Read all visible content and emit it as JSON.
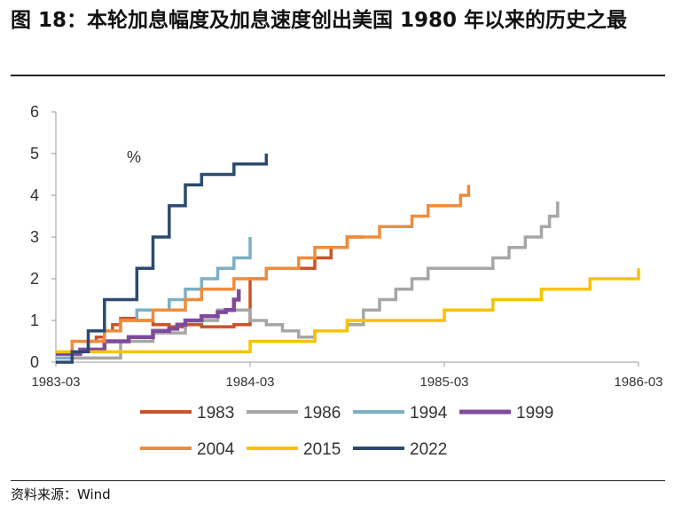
{
  "title": "图 18：本轮加息幅度及加息速度创出美国 1980 年以来的历史之最",
  "source": "资料来源：Wind",
  "chart_data": {
    "type": "line",
    "unit_label": "%",
    "x_ticks": [
      "1983-03",
      "1984-03",
      "1985-03",
      "1986-03"
    ],
    "y_ticks": [
      "0",
      "1",
      "2",
      "3",
      "4",
      "5",
      "6"
    ],
    "ylim": [
      0,
      6
    ],
    "xlim_months": [
      0,
      36
    ],
    "grid": false,
    "legend_position": "bottom",
    "series": [
      {
        "name": "1983",
        "color": "#c9532a",
        "x": [
          0,
          1.5,
          2,
          2.5,
          3,
          3.5,
          4,
          5,
          6,
          7,
          8,
          9,
          10,
          11,
          11.7,
          12,
          13,
          14,
          15,
          16,
          17,
          18,
          19
        ],
        "y": [
          0.2,
          0.3,
          0.5,
          0.6,
          0.75,
          0.9,
          1.05,
          1.0,
          0.9,
          0.85,
          0.9,
          0.85,
          0.85,
          0.9,
          0.9,
          2.0,
          2.25,
          2.25,
          2.25,
          2.5,
          2.75,
          3.0,
          3.0
        ]
      },
      {
        "name": "1986",
        "color": "#a6a6a6",
        "x": [
          0,
          2,
          4,
          6,
          8,
          10,
          12,
          13,
          14,
          15,
          16,
          17,
          18,
          19,
          20,
          21,
          22,
          23,
          24,
          25,
          26,
          27,
          28,
          29,
          30,
          30.5,
          31
        ],
        "y": [
          0.1,
          0.1,
          0.5,
          0.7,
          1.0,
          1.25,
          1.0,
          0.9,
          0.75,
          0.6,
          0.75,
          0.75,
          0.9,
          1.25,
          1.5,
          1.75,
          2.0,
          2.25,
          2.25,
          2.25,
          2.25,
          2.5,
          2.75,
          3.0,
          3.25,
          3.5,
          3.85
        ]
      },
      {
        "name": "1994",
        "color": "#7bafc4",
        "x": [
          0,
          1,
          2,
          3,
          4,
          5,
          6,
          7,
          8,
          9,
          10,
          11,
          12
        ],
        "y": [
          0.1,
          0.25,
          0.5,
          0.75,
          1.0,
          1.25,
          1.25,
          1.5,
          1.75,
          2.0,
          2.25,
          2.5,
          3.0
        ]
      },
      {
        "name": "1999",
        "color": "#7e4a9a",
        "x": [
          0,
          1.5,
          3,
          4.5,
          6,
          7,
          7.5,
          8,
          9,
          10,
          10.5,
          11,
          11.3
        ],
        "y": [
          0.2,
          0.3,
          0.5,
          0.6,
          0.75,
          0.8,
          0.9,
          1.0,
          1.1,
          1.2,
          1.25,
          1.5,
          1.75
        ]
      },
      {
        "name": "2004",
        "color": "#ef8c3a",
        "x": [
          0,
          1,
          2,
          3,
          4,
          5,
          6,
          7,
          8,
          9,
          10,
          11,
          12,
          13,
          14,
          15,
          16,
          17,
          18,
          19,
          20,
          21,
          22,
          23,
          24,
          25,
          25.5
        ],
        "y": [
          0.25,
          0.5,
          0.5,
          0.75,
          1.0,
          1.0,
          1.25,
          1.25,
          1.5,
          1.75,
          1.75,
          2.0,
          2.0,
          2.25,
          2.25,
          2.5,
          2.75,
          2.75,
          3.0,
          3.0,
          3.25,
          3.25,
          3.5,
          3.75,
          3.75,
          4.0,
          4.25
        ]
      },
      {
        "name": "2015",
        "color": "#f7c300",
        "x": [
          0,
          3,
          6,
          9,
          12,
          14,
          16,
          18,
          21,
          24,
          27,
          30,
          33,
          36
        ],
        "y": [
          0.25,
          0.25,
          0.25,
          0.25,
          0.5,
          0.5,
          0.75,
          1.0,
          1.0,
          1.25,
          1.5,
          1.75,
          2.0,
          2.25
        ]
      },
      {
        "name": "2022",
        "color": "#2c4a6e",
        "x": [
          0,
          1,
          2,
          3,
          4,
          5,
          6,
          7,
          8,
          9,
          10,
          11,
          12,
          13
        ],
        "y": [
          0.0,
          0.25,
          0.75,
          1.5,
          1.5,
          2.25,
          3.0,
          3.75,
          4.25,
          4.5,
          4.5,
          4.75,
          4.75,
          5.0
        ]
      }
    ]
  }
}
